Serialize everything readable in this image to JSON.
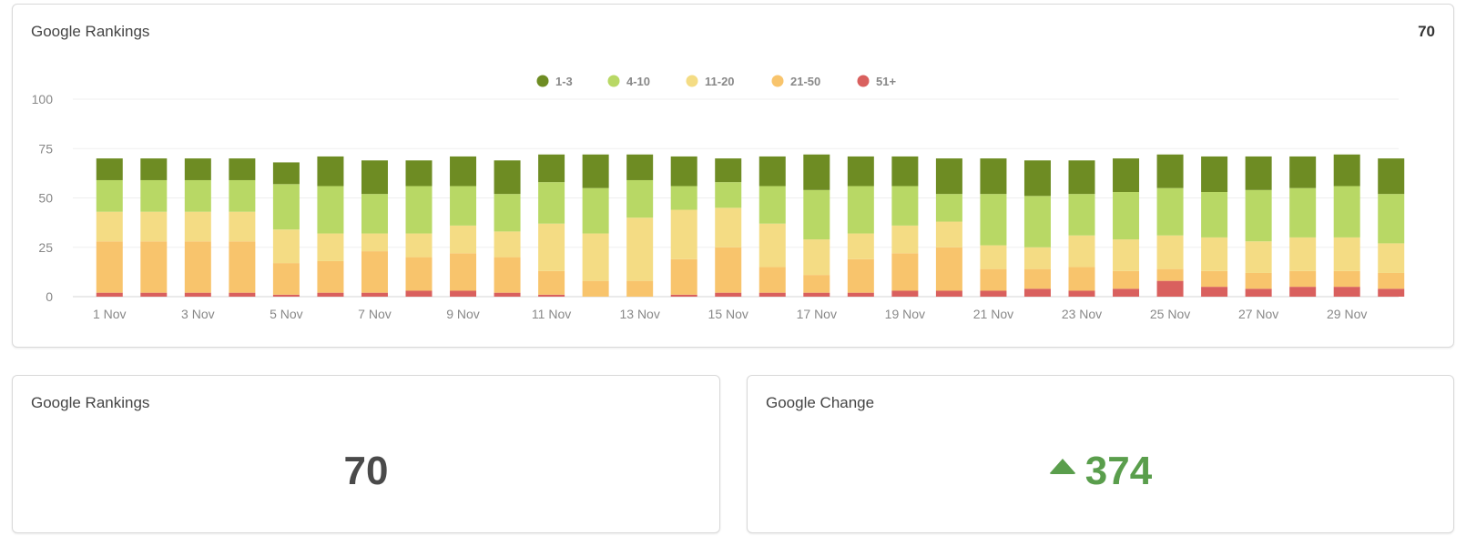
{
  "rankings_chart_card": {
    "title": "Google Rankings",
    "count": "70"
  },
  "rankings_card": {
    "title": "Google Rankings",
    "value": "70"
  },
  "change_card": {
    "title": "Google Change",
    "value": "374",
    "icon": "triangle-up-icon",
    "color": "#5a9e4c"
  },
  "chart_data": {
    "type": "bar",
    "stacked": true,
    "x": [
      "1 Nov",
      "2 Nov",
      "3 Nov",
      "4 Nov",
      "5 Nov",
      "6 Nov",
      "7 Nov",
      "8 Nov",
      "9 Nov",
      "10 Nov",
      "11 Nov",
      "12 Nov",
      "13 Nov",
      "14 Nov",
      "15 Nov",
      "16 Nov",
      "17 Nov",
      "18 Nov",
      "19 Nov",
      "20 Nov",
      "21 Nov",
      "22 Nov",
      "23 Nov",
      "24 Nov",
      "25 Nov",
      "26 Nov",
      "27 Nov",
      "28 Nov",
      "29 Nov",
      "30 Nov"
    ],
    "x_tick_labels": [
      "1 Nov",
      "3 Nov",
      "5 Nov",
      "7 Nov",
      "9 Nov",
      "11 Nov",
      "13 Nov",
      "15 Nov",
      "17 Nov",
      "19 Nov",
      "21 Nov",
      "23 Nov",
      "25 Nov",
      "27 Nov",
      "29 Nov"
    ],
    "y_ticks": [
      0,
      25,
      50,
      75,
      100
    ],
    "ylim": [
      0,
      100
    ],
    "grid": true,
    "legend_position": "top-center",
    "series": [
      {
        "name": "51+",
        "color": "#d9605e",
        "values": [
          2,
          2,
          2,
          2,
          1,
          2,
          2,
          3,
          3,
          2,
          1,
          0,
          0,
          1,
          2,
          2,
          2,
          2,
          3,
          3,
          3,
          4,
          3,
          4,
          8,
          5,
          4,
          5,
          5,
          4
        ]
      },
      {
        "name": "21-50",
        "color": "#f8c46c",
        "values": [
          26,
          26,
          26,
          26,
          16,
          16,
          21,
          17,
          19,
          18,
          12,
          8,
          8,
          18,
          23,
          13,
          9,
          17,
          19,
          22,
          11,
          10,
          12,
          9,
          6,
          8,
          8,
          8,
          8,
          8
        ]
      },
      {
        "name": "11-20",
        "color": "#f4dc84",
        "values": [
          15,
          15,
          15,
          15,
          17,
          14,
          9,
          12,
          14,
          13,
          24,
          24,
          32,
          25,
          20,
          22,
          18,
          13,
          14,
          13,
          12,
          11,
          16,
          16,
          17,
          17,
          16,
          17,
          17,
          15
        ]
      },
      {
        "name": "4-10",
        "color": "#b8d865",
        "values": [
          16,
          16,
          16,
          16,
          23,
          24,
          20,
          24,
          20,
          19,
          21,
          23,
          19,
          12,
          13,
          19,
          25,
          24,
          20,
          14,
          26,
          26,
          21,
          24,
          24,
          23,
          26,
          25,
          26,
          25
        ]
      },
      {
        "name": "1-3",
        "color": "#6e8c23",
        "values": [
          11,
          11,
          11,
          11,
          11,
          15,
          17,
          13,
          15,
          17,
          14,
          17,
          13,
          15,
          12,
          15,
          18,
          15,
          15,
          18,
          18,
          18,
          17,
          17,
          17,
          18,
          17,
          16,
          16,
          18
        ]
      }
    ],
    "legend_order": [
      "1-3",
      "4-10",
      "11-20",
      "21-50",
      "51+"
    ]
  }
}
